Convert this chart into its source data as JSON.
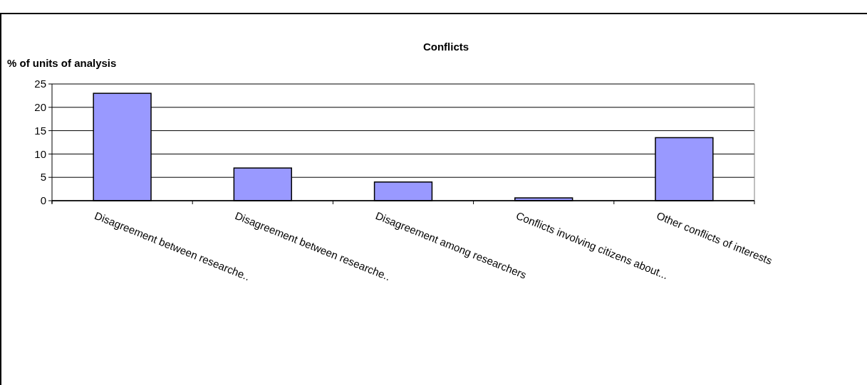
{
  "chart_data": {
    "type": "bar",
    "title": "Conflicts",
    "ylabel": "% of units of analysis",
    "categories": [
      "Disagreement between researche..",
      "Disagreement between researche..",
      "Disagreement among researchers",
      "Conflicts involving citizens  about...",
      "Other conflicts of interests"
    ],
    "values": [
      23,
      7,
      4,
      0.6,
      13.5
    ],
    "color": "#9999ff",
    "ylim": [
      0,
      25
    ],
    "yticks": [
      0,
      5,
      10,
      15,
      20,
      25
    ],
    "grid": "y"
  }
}
